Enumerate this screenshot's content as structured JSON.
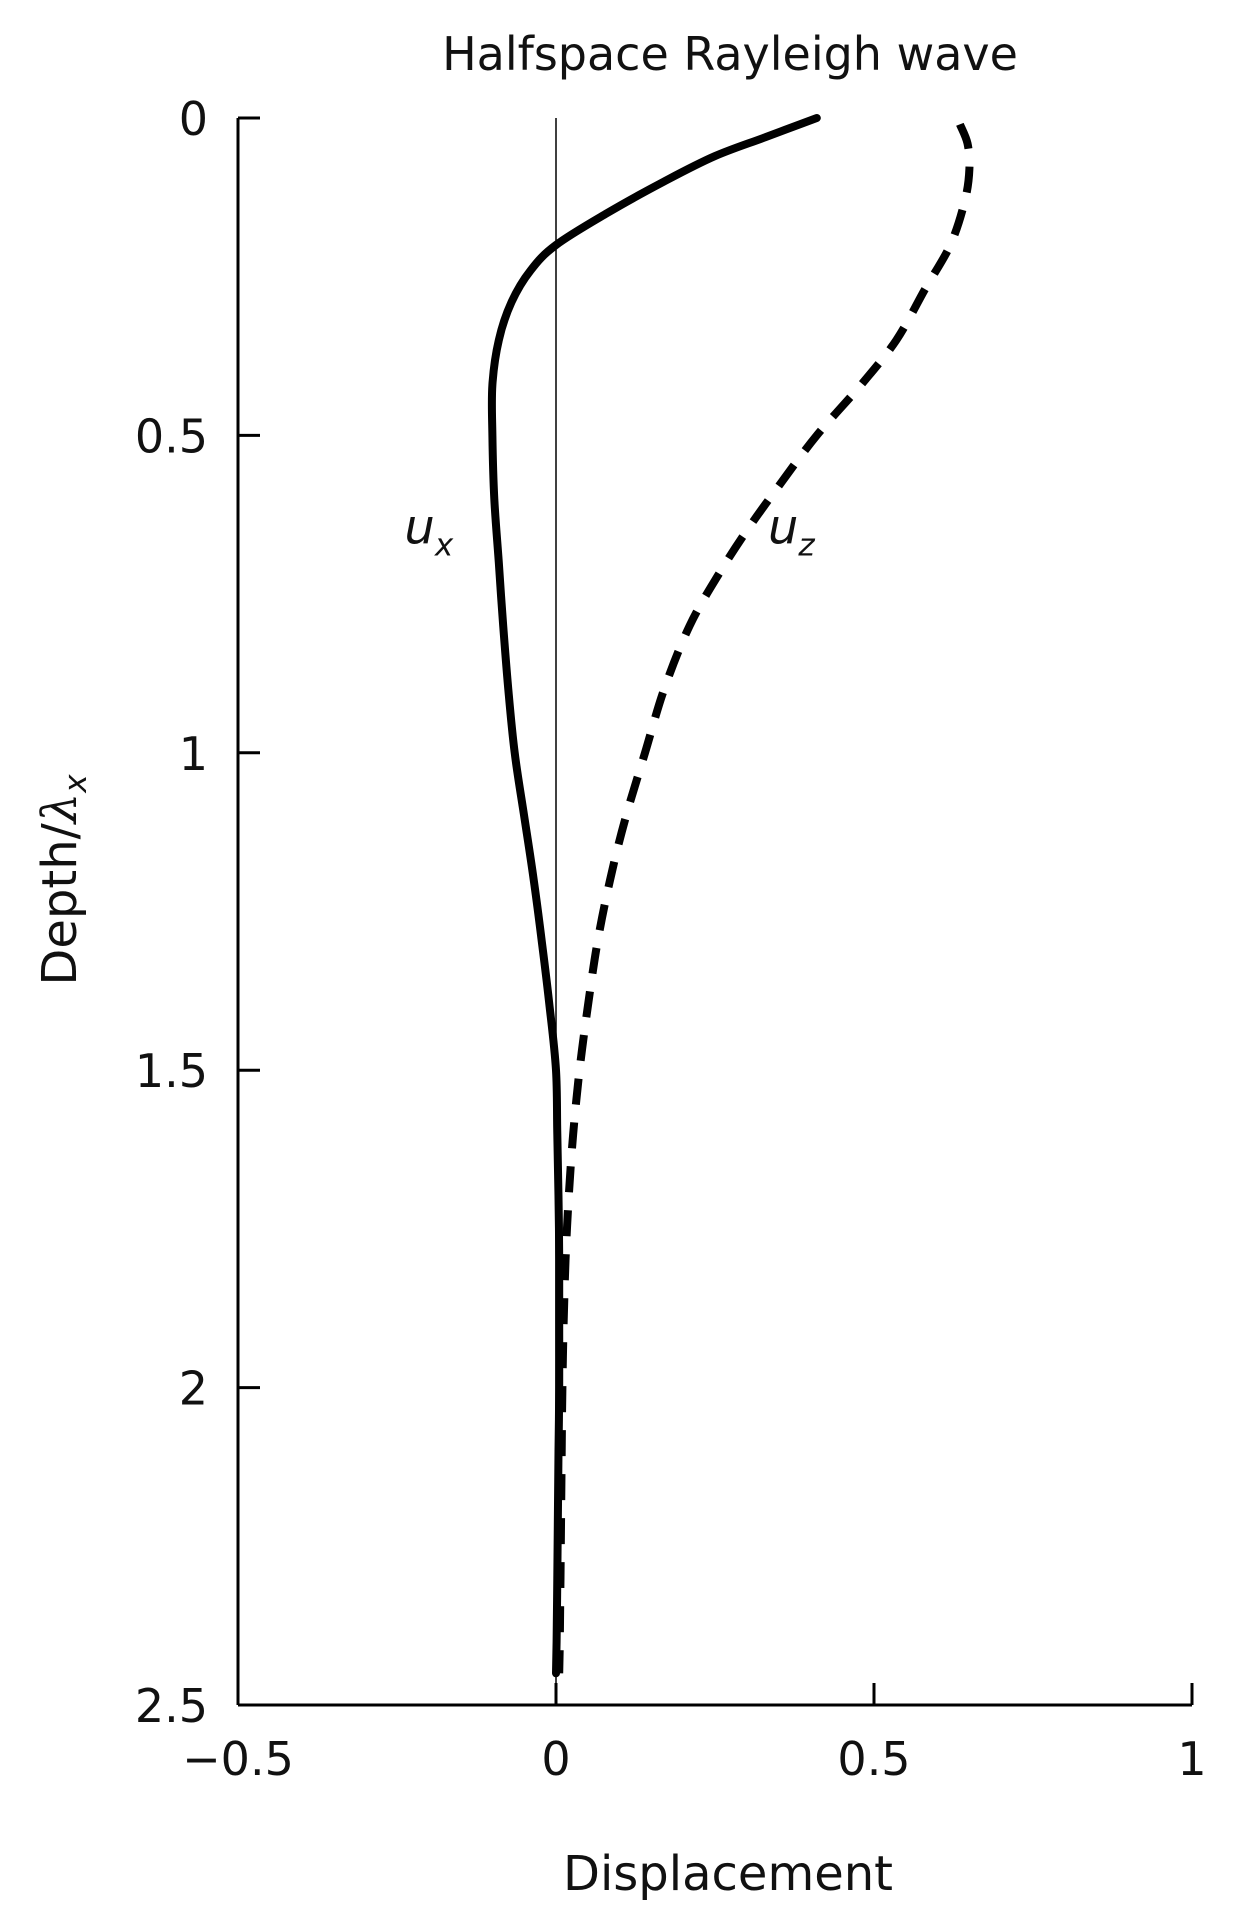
{
  "chart_data": {
    "type": "line",
    "title": "Halfspace Rayleigh wave",
    "xlabel": "Displacement",
    "ylabel": {
      "text": "Depth/",
      "symbol": "λ",
      "subscript": "x"
    },
    "xlim": [
      -0.5,
      1
    ],
    "ylim": [
      0,
      2.5
    ],
    "y_inverted": true,
    "grid": false,
    "legend": "none",
    "x_ticks": [
      {
        "value": -0.5,
        "label": "−0.5"
      },
      {
        "value": 0,
        "label": "0"
      },
      {
        "value": 0.5,
        "label": "0.5"
      },
      {
        "value": 1,
        "label": "1"
      }
    ],
    "y_ticks": [
      {
        "value": 0,
        "label": "0"
      },
      {
        "value": 0.5,
        "label": "0.5"
      },
      {
        "value": 1,
        "label": "1"
      },
      {
        "value": 1.5,
        "label": "1.5"
      },
      {
        "value": 2,
        "label": "2"
      },
      {
        "value": 2.5,
        "label": "2.5"
      }
    ],
    "reference_line": {
      "x": 0,
      "y_range": [
        0,
        2.5
      ]
    },
    "series": [
      {
        "name": "u",
        "subscript": "x",
        "style": "solid",
        "label_at": {
          "x": -0.2,
          "depth": 0.67
        },
        "points": [
          [
            0.41,
            0.0
          ],
          [
            0.33,
            0.03
          ],
          [
            0.25,
            0.06
          ],
          [
            0.17,
            0.1
          ],
          [
            0.08,
            0.15
          ],
          [
            0.0,
            0.2
          ],
          [
            -0.04,
            0.24
          ],
          [
            -0.07,
            0.29
          ],
          [
            -0.09,
            0.35
          ],
          [
            -0.1,
            0.42
          ],
          [
            -0.1,
            0.5
          ],
          [
            -0.097,
            0.6
          ],
          [
            -0.09,
            0.7
          ],
          [
            -0.083,
            0.8
          ],
          [
            -0.075,
            0.9
          ],
          [
            -0.065,
            1.0
          ],
          [
            -0.05,
            1.1
          ],
          [
            -0.035,
            1.2
          ],
          [
            -0.022,
            1.3
          ],
          [
            -0.01,
            1.4
          ],
          [
            0.0,
            1.5
          ],
          [
            0.002,
            1.6
          ],
          [
            0.004,
            1.7
          ],
          [
            0.005,
            1.8
          ],
          [
            0.005,
            1.9
          ],
          [
            0.005,
            2.0
          ],
          [
            0.004,
            2.1
          ],
          [
            0.003,
            2.2
          ],
          [
            0.002,
            2.3
          ],
          [
            0.001,
            2.4
          ],
          [
            0.0,
            2.45
          ]
        ]
      },
      {
        "name": "u",
        "subscript": "z",
        "style": "dashed",
        "label_at": {
          "x": 0.37,
          "depth": 0.67
        },
        "points": [
          [
            0.635,
            0.01
          ],
          [
            0.647,
            0.04
          ],
          [
            0.65,
            0.08
          ],
          [
            0.643,
            0.13
          ],
          [
            0.62,
            0.2
          ],
          [
            0.58,
            0.27
          ],
          [
            0.535,
            0.35
          ],
          [
            0.48,
            0.42
          ],
          [
            0.41,
            0.5
          ],
          [
            0.35,
            0.58
          ],
          [
            0.3,
            0.65
          ],
          [
            0.255,
            0.72
          ],
          [
            0.21,
            0.8
          ],
          [
            0.17,
            0.9
          ],
          [
            0.14,
            1.0
          ],
          [
            0.11,
            1.1
          ],
          [
            0.085,
            1.2
          ],
          [
            0.065,
            1.3
          ],
          [
            0.05,
            1.4
          ],
          [
            0.037,
            1.5
          ],
          [
            0.027,
            1.6
          ],
          [
            0.02,
            1.7
          ],
          [
            0.015,
            1.8
          ],
          [
            0.012,
            1.9
          ],
          [
            0.01,
            2.0
          ],
          [
            0.009,
            2.1
          ],
          [
            0.008,
            2.2
          ],
          [
            0.007,
            2.3
          ],
          [
            0.006,
            2.4
          ],
          [
            0.005,
            2.45
          ]
        ]
      }
    ]
  }
}
